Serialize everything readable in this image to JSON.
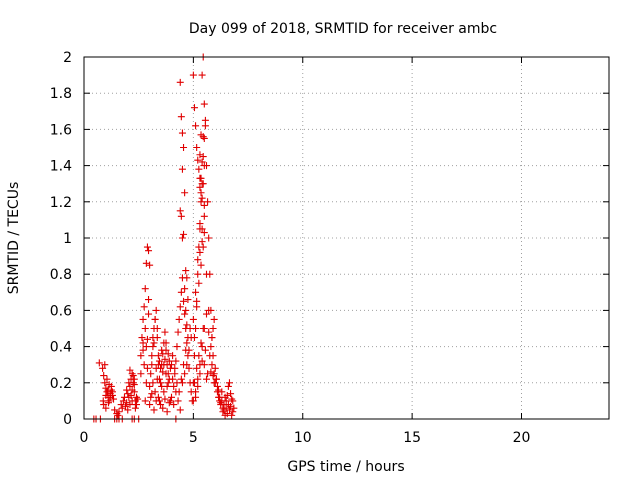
{
  "chart_data": {
    "type": "scatter",
    "title": "Day 099 of 2018, SRMTID for receiver ambc",
    "xlabel": "GPS time / hours",
    "ylabel": "SRMTID / TECUs",
    "xlim": [
      0,
      24
    ],
    "ylim": [
      0,
      2
    ],
    "xticks": [
      0,
      5,
      10,
      15,
      20
    ],
    "yticks": [
      0,
      0.2,
      0.4,
      0.6,
      0.8,
      1,
      1.2,
      1.4,
      1.6,
      1.8,
      2
    ],
    "ytick_labels": [
      "0",
      "0.2",
      "0.4",
      "0.6",
      "0.8",
      "1",
      "1.2",
      "1.4",
      "1.6",
      "1.8",
      "2"
    ],
    "grid": true,
    "marker": "+",
    "color": "#e00000",
    "series": [
      {
        "name": "",
        "x": [
          0.45,
          0.7,
          0.85,
          0.9,
          0.95,
          1.0,
          1.05,
          1.1,
          1.15,
          1.2,
          1.25,
          1.3,
          1.35,
          0.9,
          1.0,
          1.1,
          1.2,
          0.95,
          1.05,
          1.15,
          1.3,
          0.88,
          1.0,
          1.12,
          1.25,
          1.4,
          1.5,
          1.55,
          1.6,
          1.7,
          1.75,
          1.8,
          1.85,
          1.9,
          1.95,
          2.0,
          2.05,
          2.1,
          2.15,
          2.2,
          2.25,
          2.3,
          2.35,
          2.4,
          2.0,
          2.1,
          2.2,
          2.3,
          2.4,
          2.05,
          2.15,
          2.25,
          2.35,
          2.1,
          2.2,
          2.3,
          1.95,
          2.45,
          2.6,
          2.65,
          2.7,
          2.75,
          2.8,
          2.85,
          2.9,
          2.95,
          3.0,
          2.7,
          2.75,
          2.8,
          2.85,
          2.9,
          2.95,
          2.8,
          2.85,
          2.9,
          2.6,
          2.7,
          2.95,
          3.0,
          3.05,
          3.1,
          3.15,
          3.2,
          3.25,
          3.3,
          3.35,
          3.4,
          3.45,
          3.5,
          3.55,
          3.6,
          3.65,
          3.7,
          3.75,
          3.8,
          3.85,
          3.9,
          3.95,
          3.05,
          3.15,
          3.25,
          3.35,
          3.45,
          3.55,
          3.65,
          3.75,
          3.85,
          3.95,
          3.1,
          3.2,
          3.3,
          3.4,
          3.5,
          3.6,
          3.7,
          3.8,
          3.9,
          3.0,
          3.1,
          3.2,
          3.3,
          3.4,
          3.5,
          3.6,
          3.7,
          3.8,
          3.9,
          3.15,
          3.35,
          3.55,
          3.75,
          3.25,
          3.45,
          3.65,
          3.85,
          4.0,
          4.05,
          4.1,
          4.15,
          4.2,
          4.25,
          4.3,
          4.35,
          4.4,
          4.45,
          4.5,
          4.55,
          4.6,
          4.65,
          4.7,
          4.75,
          4.8,
          4.85,
          4.9,
          4.95,
          4.0,
          4.1,
          4.2,
          4.3,
          4.4,
          4.5,
          4.6,
          4.7,
          4.8,
          4.9,
          4.05,
          4.15,
          4.25,
          4.35,
          4.45,
          4.55,
          4.65,
          4.75,
          4.85,
          4.4,
          4.45,
          4.5,
          4.55,
          4.4,
          4.45,
          4.5,
          4.5,
          4.6,
          4.55,
          4.65,
          4.7,
          4.6,
          4.65,
          4.7,
          4.75,
          5.0,
          5.05,
          5.1,
          5.15,
          5.2,
          5.25,
          5.3,
          5.35,
          5.4,
          5.45,
          5.5,
          5.55,
          5.6,
          5.65,
          5.7,
          5.75,
          5.8,
          5.85,
          5.9,
          5.95,
          5.0,
          5.05,
          5.1,
          5.15,
          5.2,
          5.25,
          5.3,
          5.35,
          5.4,
          5.45,
          5.5,
          5.0,
          5.1,
          5.2,
          5.3,
          5.4,
          5.5,
          5.05,
          5.15,
          5.25,
          5.35,
          5.45,
          5.0,
          5.1,
          5.2,
          5.3,
          5.4,
          5.5,
          5.6,
          5.7,
          5.05,
          5.15,
          5.25,
          5.35,
          5.45,
          5.55,
          5.65,
          5.1,
          5.2,
          5.3,
          5.4,
          5.5,
          5.6,
          5.3,
          5.4,
          5.5,
          5.35,
          5.45,
          5.3,
          5.4,
          5.5,
          5.35,
          5.45,
          5.55,
          5.3,
          5.4,
          5.5,
          5.6,
          6.0,
          6.05,
          6.1,
          6.15,
          6.2,
          6.25,
          6.3,
          6.35,
          6.4,
          6.45,
          6.5,
          6.55,
          6.6,
          6.65,
          6.7,
          6.75,
          6.8,
          6.85,
          6.0,
          6.1,
          6.2,
          6.3,
          6.4,
          6.5,
          6.6,
          6.7,
          6.8,
          6.05,
          6.15,
          6.25,
          6.35,
          6.45,
          6.55,
          6.65,
          6.75,
          5.8,
          5.85,
          5.9,
          5.95,
          5.75,
          5.8,
          5.85,
          5.9,
          5.95,
          5.7,
          0.55,
          0.75,
          1.4,
          1.5,
          1.6,
          1.75,
          2.2,
          2.3,
          2.5,
          4.2
        ],
        "y": [
          0.0,
          0.31,
          0.28,
          0.24,
          0.2,
          0.17,
          0.15,
          0.12,
          0.1,
          0.14,
          0.18,
          0.13,
          0.11,
          0.08,
          0.06,
          0.16,
          0.12,
          0.3,
          0.22,
          0.19,
          0.15,
          0.1,
          0.13,
          0.09,
          0.16,
          0.05,
          0.03,
          0.02,
          0.04,
          0.08,
          0.06,
          0.1,
          0.12,
          0.07,
          0.09,
          0.05,
          0.12,
          0.18,
          0.22,
          0.25,
          0.2,
          0.15,
          0.1,
          0.08,
          0.14,
          0.08,
          0.16,
          0.19,
          0.12,
          0.2,
          0.13,
          0.24,
          0.06,
          0.27,
          0.1,
          0.22,
          0.16,
          0.11,
          0.35,
          0.45,
          0.55,
          0.62,
          0.72,
          0.86,
          0.95,
          0.93,
          0.85,
          0.42,
          0.3,
          0.5,
          0.4,
          0.28,
          0.66,
          0.1,
          0.2,
          0.44,
          0.25,
          0.38,
          0.58,
          0.18,
          0.25,
          0.3,
          0.4,
          0.5,
          0.55,
          0.6,
          0.45,
          0.35,
          0.22,
          0.28,
          0.3,
          0.36,
          0.42,
          0.48,
          0.38,
          0.3,
          0.25,
          0.32,
          0.28,
          0.12,
          0.2,
          0.15,
          0.22,
          0.1,
          0.18,
          0.15,
          0.25,
          0.2,
          0.1,
          0.35,
          0.42,
          0.28,
          0.3,
          0.2,
          0.26,
          0.33,
          0.18,
          0.22,
          0.08,
          0.14,
          0.05,
          0.1,
          0.12,
          0.08,
          0.06,
          0.11,
          0.04,
          0.09,
          0.45,
          0.5,
          0.38,
          0.42,
          0.55,
          0.32,
          0.3,
          0.36,
          0.3,
          0.22,
          0.18,
          0.25,
          0.32,
          0.4,
          0.48,
          0.55,
          0.62,
          0.7,
          0.78,
          0.65,
          0.58,
          0.5,
          0.42,
          0.35,
          0.28,
          0.2,
          0.15,
          0.1,
          0.12,
          0.08,
          0.15,
          0.1,
          0.05,
          0.2,
          0.25,
          0.3,
          0.38,
          0.45,
          0.35,
          0.28,
          0.2,
          0.15,
          0.22,
          0.3,
          0.38,
          0.45,
          0.5,
          1.86,
          1.67,
          1.58,
          1.5,
          1.15,
          1.12,
          1.0,
          1.38,
          1.25,
          1.02,
          0.82,
          0.78,
          0.72,
          0.6,
          0.52,
          0.66,
          0.2,
          0.35,
          0.5,
          0.65,
          0.8,
          0.95,
          1.05,
          1.2,
          1.3,
          1.45,
          1.55,
          1.65,
          1.4,
          1.2,
          1.0,
          0.8,
          0.6,
          0.45,
          0.35,
          0.25,
          1.9,
          1.72,
          1.62,
          1.5,
          1.43,
          1.38,
          1.33,
          1.25,
          1.9,
          2.0,
          1.74,
          0.55,
          0.7,
          0.88,
          0.92,
          0.98,
          1.12,
          0.45,
          0.62,
          0.75,
          0.85,
          0.95,
          0.1,
          0.15,
          0.22,
          0.3,
          0.4,
          0.5,
          0.58,
          0.48,
          0.2,
          0.28,
          0.35,
          0.42,
          0.5,
          0.38,
          0.25,
          0.12,
          0.18,
          0.25,
          0.32,
          0.3,
          0.22,
          1.46,
          1.42,
          1.4,
          1.33,
          1.3,
          1.28,
          1.22,
          1.18,
          1.57,
          1.56,
          1.62,
          1.08,
          1.05,
          1.03,
          0.8,
          0.28,
          0.22,
          0.18,
          0.12,
          0.1,
          0.08,
          0.15,
          0.06,
          0.05,
          0.12,
          0.1,
          0.03,
          0.08,
          0.05,
          0.07,
          0.02,
          0.04,
          0.06,
          0.2,
          0.15,
          0.12,
          0.1,
          0.08,
          0.06,
          0.18,
          0.14,
          0.1,
          0.22,
          0.16,
          0.09,
          0.04,
          0.02,
          0.13,
          0.2,
          0.11,
          0.26,
          0.3,
          0.24,
          0.2,
          0.35,
          0.4,
          0.45,
          0.5,
          0.55,
          0.6,
          0.0,
          0.0,
          0.0,
          0.0,
          0.0,
          0.0,
          0.0,
          0.0,
          0.0,
          0.0
        ]
      }
    ]
  }
}
